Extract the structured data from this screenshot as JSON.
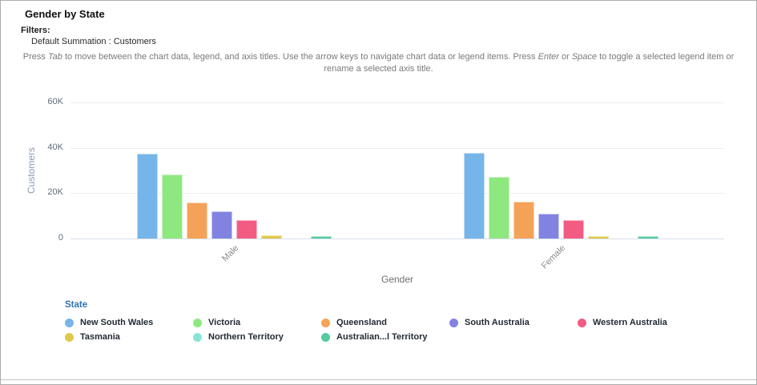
{
  "page": {
    "title": "Gender by State",
    "filters_label": "Filters:",
    "filter_value": "Default Summation : Customers"
  },
  "instructions": {
    "segments": [
      {
        "text": "Press "
      },
      {
        "text": "Tab",
        "italic": true
      },
      {
        "text": " to move between the chart data, legend, and axis titles. Use the arrow keys to navigate chart data or legend items. Press "
      },
      {
        "text": "Enter",
        "italic": true
      },
      {
        "text": " or "
      },
      {
        "text": "Space",
        "italic": true
      },
      {
        "text": " to toggle a selected legend item or rename a selected axis title."
      }
    ]
  },
  "chart_data": {
    "type": "bar",
    "title": "Gender by State",
    "xlabel": "Gender",
    "ylabel": "Customers",
    "categories": [
      "Male",
      "Female"
    ],
    "y_ticks": [
      "60K",
      "40K",
      "20K",
      "0"
    ],
    "ylim": [
      0,
      60000
    ],
    "grid": true,
    "legend_title": "State",
    "legend_position": "bottom",
    "series": [
      {
        "name": "New South Wales",
        "color": "#76b5e9",
        "values": [
          37400,
          37800
        ]
      },
      {
        "name": "Victoria",
        "color": "#8ee880",
        "values": [
          28200,
          27100
        ]
      },
      {
        "name": "Queensland",
        "color": "#f5a259",
        "values": [
          15900,
          16200
        ]
      },
      {
        "name": "South Australia",
        "color": "#8283e0",
        "values": [
          11900,
          10900
        ]
      },
      {
        "name": "Western Australia",
        "color": "#f25c82",
        "values": [
          8100,
          8100
        ]
      },
      {
        "name": "Tasmania",
        "color": "#dfc94a",
        "values": [
          1400,
          1200
        ]
      },
      {
        "name": "Northern Territory",
        "color": "#87e5d8",
        "values": [
          100,
          100
        ]
      },
      {
        "name": "Australian...l Territory",
        "color": "#55cb9e",
        "values": [
          1100,
          1000
        ]
      }
    ]
  }
}
